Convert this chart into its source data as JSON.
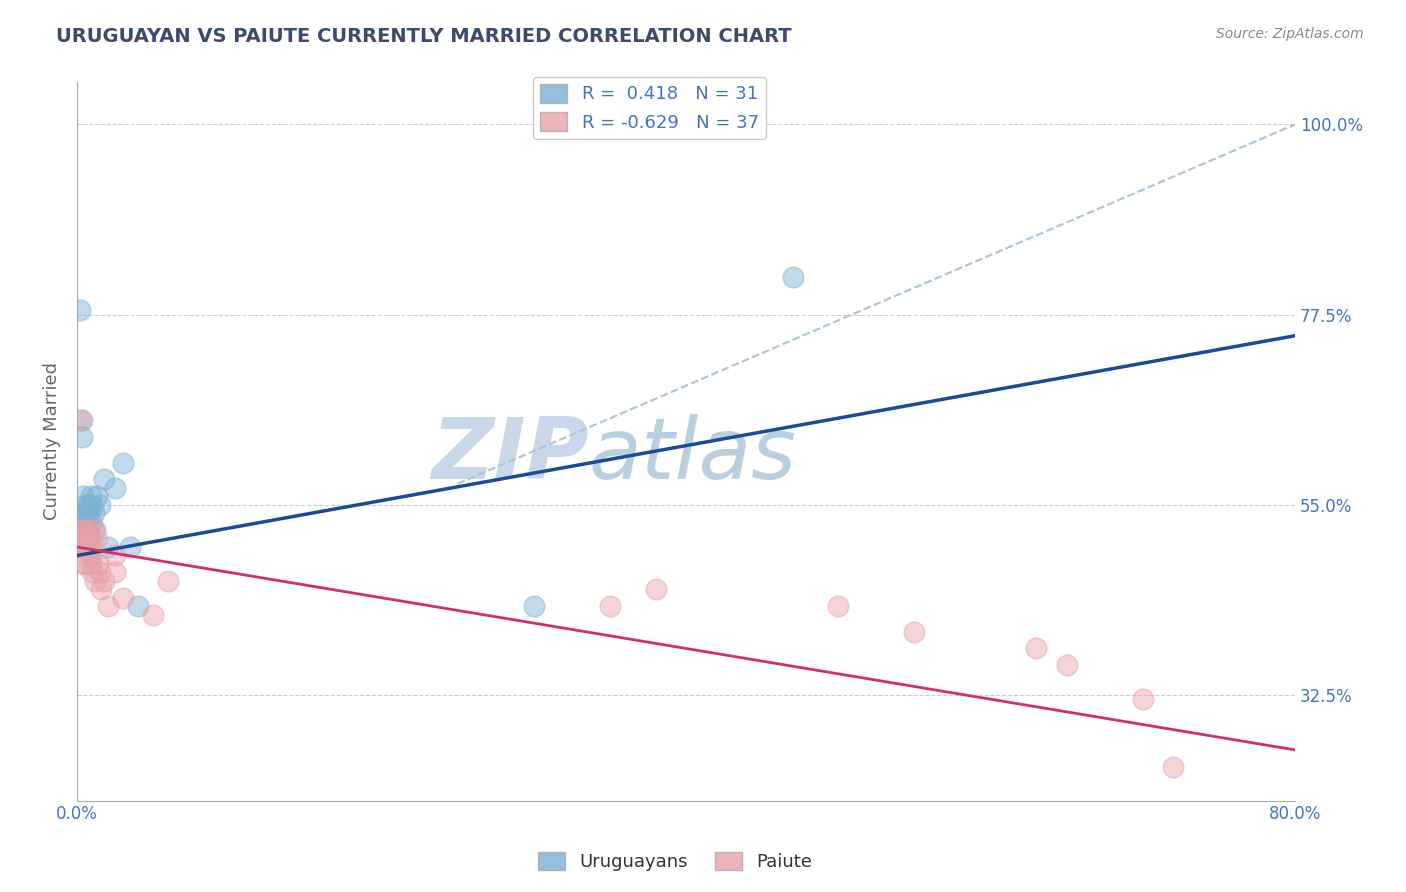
{
  "title": "URUGUAYAN VS PAIUTE CURRENTLY MARRIED CORRELATION CHART",
  "source_text": "Source: ZipAtlas.com",
  "ylabel": "Currently Married",
  "xlim": [
    0.0,
    0.8
  ],
  "ylim": [
    0.2,
    1.05
  ],
  "yticks": [
    0.325,
    0.55,
    0.775,
    1.0
  ],
  "ytick_labels": [
    "32.5%",
    "55.0%",
    "77.5%",
    "100.0%"
  ],
  "xticks": [
    0.0,
    0.8
  ],
  "xtick_labels": [
    "0.0%",
    "80.0%"
  ],
  "uruguayan_color": "#7bafd4",
  "paiute_color": "#e8a0a8",
  "uruguayan_R": 0.418,
  "uruguayan_N": 31,
  "paiute_R": -0.629,
  "paiute_N": 37,
  "legend_label_uruguayan": "Uruguayans",
  "legend_label_paiute": "Paiute",
  "uruguayan_scatter_x": [
    0.001,
    0.002,
    0.002,
    0.003,
    0.003,
    0.004,
    0.004,
    0.005,
    0.005,
    0.005,
    0.006,
    0.006,
    0.007,
    0.007,
    0.008,
    0.008,
    0.009,
    0.009,
    0.01,
    0.011,
    0.012,
    0.013,
    0.015,
    0.018,
    0.02,
    0.025,
    0.03,
    0.035,
    0.04,
    0.3,
    0.47
  ],
  "uruguayan_scatter_y": [
    0.5,
    0.78,
    0.52,
    0.63,
    0.65,
    0.54,
    0.56,
    0.51,
    0.53,
    0.55,
    0.52,
    0.54,
    0.52,
    0.55,
    0.51,
    0.54,
    0.53,
    0.56,
    0.55,
    0.54,
    0.52,
    0.56,
    0.55,
    0.58,
    0.5,
    0.57,
    0.6,
    0.5,
    0.43,
    0.43,
    0.82
  ],
  "paiute_scatter_x": [
    0.001,
    0.002,
    0.003,
    0.004,
    0.005,
    0.005,
    0.006,
    0.006,
    0.007,
    0.007,
    0.008,
    0.008,
    0.009,
    0.009,
    0.01,
    0.01,
    0.011,
    0.012,
    0.013,
    0.014,
    0.015,
    0.016,
    0.018,
    0.02,
    0.025,
    0.025,
    0.03,
    0.05,
    0.06,
    0.35,
    0.38,
    0.5,
    0.55,
    0.63,
    0.65,
    0.7,
    0.72
  ],
  "paiute_scatter_y": [
    0.51,
    0.65,
    0.52,
    0.48,
    0.52,
    0.5,
    0.51,
    0.48,
    0.52,
    0.5,
    0.49,
    0.51,
    0.48,
    0.5,
    0.47,
    0.49,
    0.52,
    0.46,
    0.51,
    0.48,
    0.47,
    0.45,
    0.46,
    0.43,
    0.47,
    0.49,
    0.44,
    0.42,
    0.46,
    0.43,
    0.45,
    0.43,
    0.4,
    0.38,
    0.36,
    0.32,
    0.24
  ],
  "background_color": "#ffffff",
  "grid_color": "#cccccc",
  "title_color": "#3d4a6b",
  "source_color": "#888888",
  "axis_label_color": "#666666",
  "tick_color": "#4472c4",
  "line_blue_color": "#1a4a99",
  "line_pink_color": "#cc3366",
  "dashed_line_color": "#aac4d8",
  "watermark_zip_color": "#c8d8e8",
  "watermark_atlas_color": "#b8cfe0",
  "watermark_fontsize": 62
}
